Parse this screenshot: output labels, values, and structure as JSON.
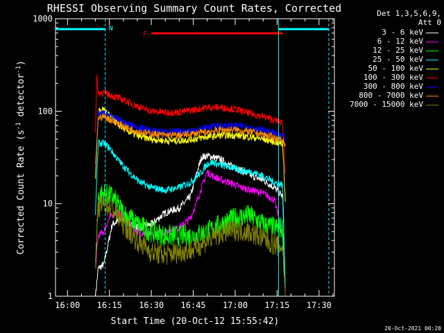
{
  "chart_data": {
    "type": "line",
    "title": "RHESSI Observing Summary Count Rates, Corrected",
    "xlabel": "Start Time (20-Oct-12 15:55:42)",
    "ylabel": "Corrected Count Rate (s",
    "ylabel_sup1": "-1",
    "ylabel_mid": " detector",
    "ylabel_sup2": "-1",
    "ylabel_end": ")",
    "y_scale": "log",
    "ylim": [
      1,
      1000
    ],
    "y_ticks": [
      "1",
      "10",
      "100",
      "1000"
    ],
    "x_ticks": [
      "16:00",
      "16:15",
      "16:30",
      "16:45",
      "17:00",
      "17:15",
      "17:30"
    ],
    "x_tick_minutes": [
      0,
      15,
      30,
      45,
      60,
      75,
      90
    ],
    "xlim_minutes": [
      -4.3,
      95.5
    ],
    "legend_header": [
      "Det 1,3,5,6,9,",
      "Att 0"
    ],
    "annotations": {
      "night_label": "N",
      "flare_label": "F",
      "night_bars": [
        [
          -4.3,
          13.5
        ],
        [
          75.5,
          93.5
        ]
      ],
      "flare_bar": [
        30,
        77
      ],
      "night_lines": [
        13.5,
        75.5,
        93.5
      ],
      "night_color": "#00ffff",
      "flare_color": "#ff0000"
    },
    "series": [
      {
        "name": "3 - 6 keV",
        "color": "#ffffff",
        "x": [
          10,
          11,
          13,
          16,
          20,
          25,
          30,
          35,
          40,
          44,
          46,
          48,
          50,
          52,
          55,
          58,
          62,
          66,
          70,
          74,
          77,
          78
        ],
        "y": [
          1,
          2,
          2.2,
          6,
          7,
          5.5,
          6,
          8,
          9,
          12,
          20,
          32,
          33,
          32,
          30,
          26,
          23,
          20,
          18,
          15,
          12,
          1
        ]
      },
      {
        "name": "6 - 12 keV",
        "color": "#ff00ff",
        "x": [
          10,
          11,
          13,
          15,
          17,
          20,
          25,
          30,
          35,
          40,
          44,
          46,
          48,
          50,
          52,
          55,
          58,
          62,
          66,
          70,
          74,
          77,
          78
        ],
        "y": [
          2,
          4.5,
          5,
          7,
          8,
          7.5,
          5,
          4.6,
          5,
          5.5,
          7,
          10,
          15,
          22,
          20,
          18,
          17,
          15,
          14,
          13,
          11,
          5,
          1
        ]
      },
      {
        "name": "12 - 25 keV",
        "color": "#00ff00",
        "x": [
          10,
          11,
          13,
          16,
          20,
          25,
          30,
          35,
          40,
          45,
          50,
          55,
          60,
          65,
          70,
          74,
          77,
          78
        ],
        "y": [
          2,
          12,
          13,
          12,
          8,
          6,
          5,
          4.5,
          4.5,
          4.5,
          5,
          6,
          7,
          7.5,
          6,
          5.5,
          5.5,
          1
        ]
      },
      {
        "name": "25 - 50 keV",
        "color": "#00ffff",
        "x": [
          10,
          11,
          13,
          15,
          18,
          22,
          26,
          30,
          35,
          40,
          44,
          48,
          50,
          52,
          55,
          58,
          62,
          66,
          70,
          74,
          77,
          78
        ],
        "y": [
          8,
          45,
          45,
          40,
          30,
          22,
          17,
          15,
          14,
          15,
          17,
          22,
          27,
          28,
          26,
          25,
          23,
          22,
          20,
          17,
          16,
          1
        ]
      },
      {
        "name": "50 - 100 keV",
        "color": "#ffff00",
        "x": [
          10,
          11,
          13,
          15,
          18,
          22,
          26,
          30,
          35,
          40,
          45,
          50,
          55,
          60,
          65,
          70,
          74,
          77,
          78
        ],
        "y": [
          20,
          100,
          105,
          90,
          72,
          60,
          53,
          50,
          48,
          48,
          50,
          53,
          55,
          55,
          53,
          50,
          47,
          44,
          10
        ]
      },
      {
        "name": "100 - 300 keV",
        "color": "#ff0000",
        "x": [
          10,
          10.5,
          11,
          13,
          15,
          18,
          22,
          26,
          30,
          35,
          40,
          45,
          50,
          55,
          60,
          65,
          70,
          74,
          77,
          78
        ],
        "y": [
          60,
          240,
          155,
          160,
          150,
          140,
          125,
          110,
          100,
          97,
          98,
          103,
          110,
          110,
          105,
          95,
          88,
          80,
          75,
          20
        ]
      },
      {
        "name": "300 - 800 keV",
        "color": "#0000ff",
        "x": [
          10,
          11,
          13,
          15,
          18,
          22,
          26,
          30,
          35,
          40,
          45,
          50,
          55,
          60,
          65,
          70,
          74,
          77,
          78
        ],
        "y": [
          30,
          92,
          95,
          90,
          82,
          72,
          66,
          62,
          60,
          60,
          62,
          67,
          70,
          70,
          68,
          62,
          58,
          53,
          50
        ]
      },
      {
        "name": "800 - 7000 keV",
        "color": "#ff8c00",
        "x": [
          10,
          11,
          13,
          15,
          18,
          22,
          26,
          30,
          35,
          40,
          45,
          50,
          55,
          60,
          65,
          70,
          74,
          77,
          78
        ],
        "y": [
          25,
          85,
          88,
          82,
          74,
          65,
          60,
          57,
          55,
          55,
          57,
          60,
          63,
          63,
          60,
          56,
          52,
          48,
          45
        ]
      },
      {
        "name": "7000 - 15000 keV",
        "color": "#808000",
        "x": [
          10,
          11,
          13,
          16,
          20,
          25,
          30,
          35,
          40,
          45,
          50,
          55,
          60,
          65,
          70,
          74,
          77,
          78
        ],
        "y": [
          2,
          9,
          10,
          9,
          6,
          4,
          3,
          2.8,
          3,
          3.2,
          4,
          4.8,
          5.2,
          5,
          4.2,
          3.6,
          3.4,
          1
        ]
      }
    ],
    "grid": false,
    "legend_position": "right-top"
  },
  "footer": {
    "timestamp": "20-Oct-2021 00:28"
  }
}
